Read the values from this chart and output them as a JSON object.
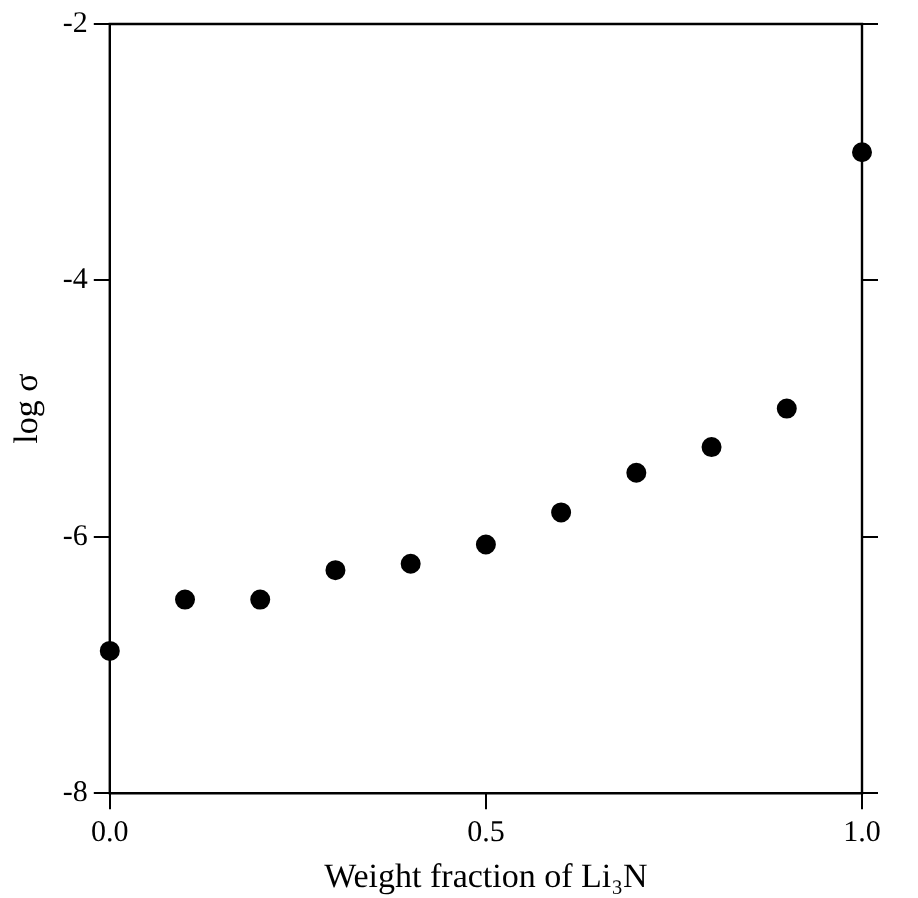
{
  "chart_data": {
    "type": "scatter",
    "xlabel": "Weight fraction of Li₃N",
    "ylabel": "log σ",
    "x": [
      0.0,
      0.1,
      0.2,
      0.3,
      0.4,
      0.5,
      0.6,
      0.7,
      0.8,
      0.9,
      1.0
    ],
    "series": [
      {
        "color": "#000000",
        "values": [
          -6.89,
          -6.49,
          -6.49,
          -6.26,
          -6.21,
          -6.06,
          -5.81,
          -5.5,
          -5.3,
          -5.0,
          -3.0
        ]
      }
    ],
    "xlim": [
      0,
      1
    ],
    "xticks": [
      {
        "value": 0,
        "label": "0.0"
      },
      0.5,
      {
        "value": 1,
        "label": "1.0"
      }
    ],
    "ylim": [
      -8,
      -2
    ],
    "yticks": [
      -8,
      -6,
      -4,
      -2
    ],
    "grid": false,
    "legend": false,
    "marker": "circle"
  }
}
